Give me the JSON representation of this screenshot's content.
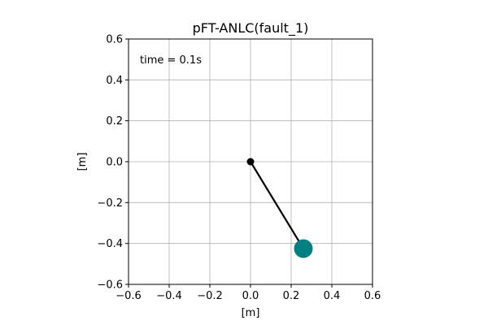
{
  "chart_data": {
    "type": "scatter",
    "title": "pFT-ANLC(fault_1)",
    "xlabel": "[m]",
    "ylabel": "[m]",
    "xlim": [
      -0.6,
      0.6
    ],
    "ylim": [
      -0.6,
      0.6
    ],
    "xticks": [
      -0.6,
      -0.4,
      -0.2,
      0.0,
      0.2,
      0.4,
      0.6
    ],
    "yticks": [
      -0.6,
      -0.4,
      -0.2,
      0.0,
      0.2,
      0.4,
      0.6
    ],
    "xtick_labels": [
      "−0.6",
      "−0.4",
      "−0.2",
      "0.0",
      "0.2",
      "0.4",
      "0.6"
    ],
    "ytick_labels": [
      "−0.6",
      "−0.4",
      "−0.2",
      "0.0",
      "0.2",
      "0.4",
      "0.6"
    ],
    "grid": true,
    "annotation": "time = 0.1s",
    "pivot": {
      "x": 0.0,
      "y": 0.0
    },
    "bob": {
      "x": 0.26,
      "y": -0.425
    },
    "colors": {
      "rod": "#000000",
      "pivot": "#000000",
      "bob": "#008080",
      "grid": "#b0b0b0",
      "axes": "#000000"
    }
  }
}
